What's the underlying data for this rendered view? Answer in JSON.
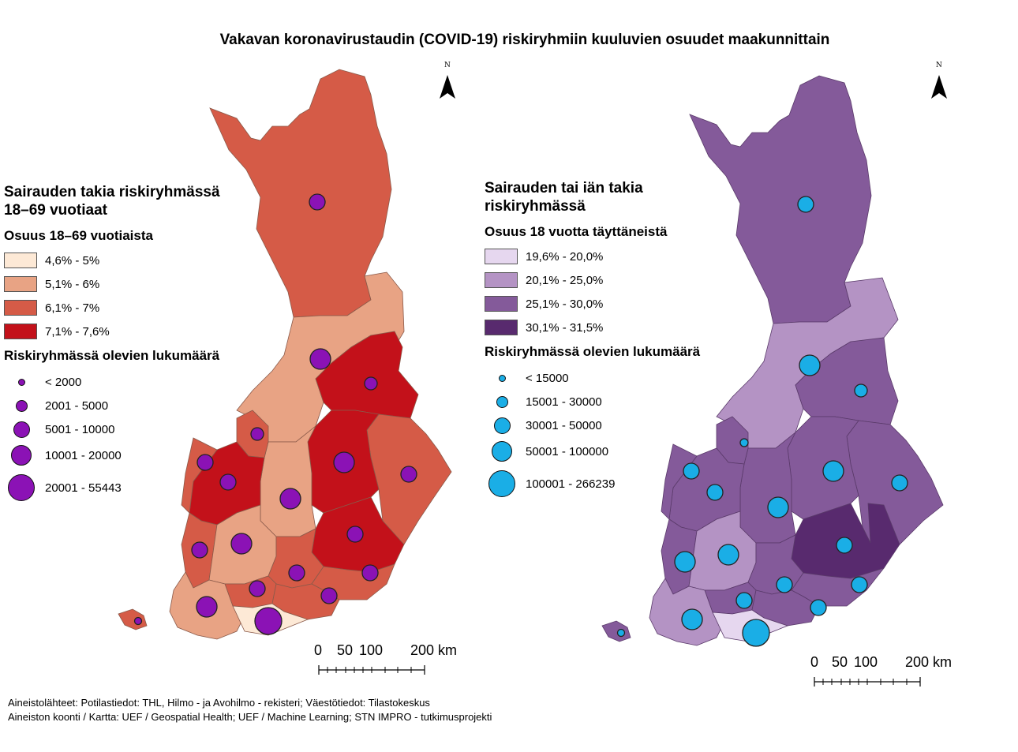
{
  "title": "Vakavan koronavirustaudin (COVID-19) riskiryhmiin kuuluvien osuudet maakunnittain",
  "left_map": {
    "legend_title": "Sairauden takia riskiryhmässä 18–69 vuotiaat",
    "legend_title_line1": "Sairauden takia riskiryhmässä",
    "legend_title_line2": "18–69 vuotiaat",
    "share_heading": "Osuus 18–69 vuotiaista",
    "classes": [
      {
        "label": "4,6% - 5%",
        "color": "#fde9d6"
      },
      {
        "label": "5,1% - 6%",
        "color": "#e8a384"
      },
      {
        "label": "6,1% - 7%",
        "color": "#d55b47"
      },
      {
        "label": "7,1% - 7,6%",
        "color": "#c3111a"
      }
    ],
    "count_heading": "Riskiryhmässä olevien lukumäärä",
    "symbol_color": "#8b12b5",
    "symbols": [
      {
        "label": "< 2000"
      },
      {
        "label": "2001 - 5000"
      },
      {
        "label": "5001 - 10000"
      },
      {
        "label": "10001 - 20000"
      },
      {
        "label": "20001 - 55443"
      }
    ],
    "scale_labels": [
      "0",
      "50",
      "100",
      "200 km"
    ]
  },
  "right_map": {
    "legend_title": "Sairauden tai iän takia riskiryhmässä",
    "legend_title_line1": "Sairauden tai iän takia",
    "legend_title_line2": "riskiryhmässä",
    "share_heading": "Osuus 18 vuotta täyttäneistä",
    "classes": [
      {
        "label": "19,6% - 20,0%",
        "color": "#e6d7ef"
      },
      {
        "label": "20,1% - 25,0%",
        "color": "#b493c4"
      },
      {
        "label": "25,1% - 30,0%",
        "color": "#845a9a"
      },
      {
        "label": "30,1% - 31,5%",
        "color": "#582a6e"
      }
    ],
    "count_heading": "Riskiryhmässä olevien lukumäärä",
    "symbol_color": "#1aaee6",
    "symbols": [
      {
        "label": "< 15000"
      },
      {
        "label": "15001 - 30000"
      },
      {
        "label": "30001 - 50000"
      },
      {
        "label": "50001 - 100000"
      },
      {
        "label": "100001 - 266239"
      }
    ],
    "scale_labels": [
      "0",
      "50",
      "100",
      "200 km"
    ]
  },
  "north_label": "N",
  "source_line1": "Aineistolähteet: Potilastiedot: THL, Hilmo - ja Avohilmo - rekisteri; Väestötiedot: Tilastokeskus",
  "source_line2": "Aineiston koonti / Kartta: UEF / Geospatial Health; UEF / Machine Learning; STN IMPRO - tutkimusprojekti"
}
